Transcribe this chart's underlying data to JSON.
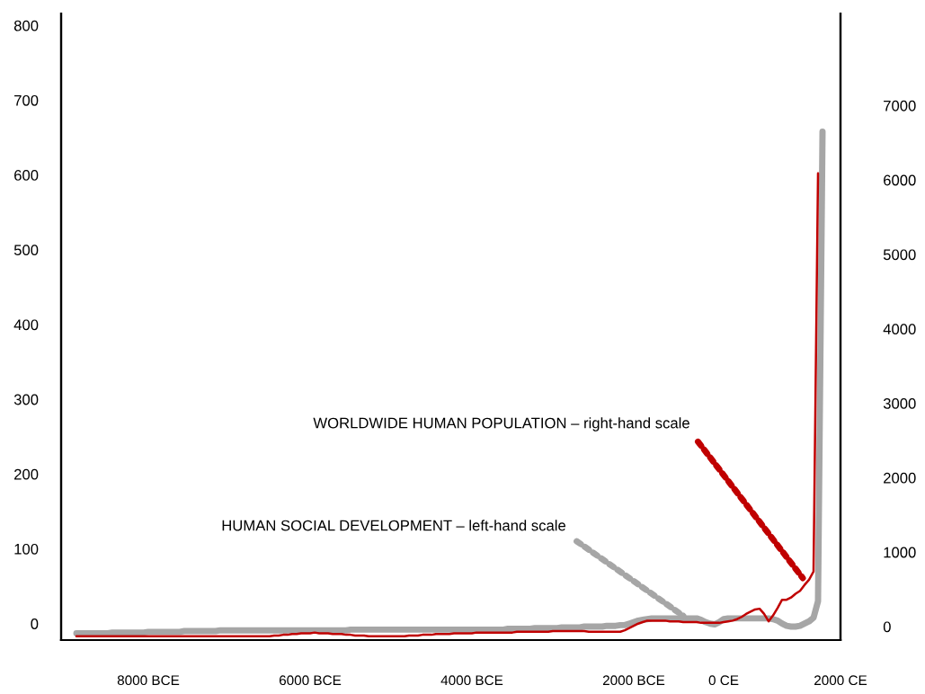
{
  "chart_data": {
    "type": "line",
    "categories": [
      null,
      null,
      null,
      null,
      null,
      null,
      null,
      null,
      null,
      null,
      null,
      null,
      null,
      null,
      null,
      null,
      "8000 BCE",
      null,
      null,
      null,
      null,
      null,
      null,
      null,
      null,
      null,
      null,
      null,
      null,
      null,
      null,
      null,
      null,
      null,
      null,
      null,
      null,
      null,
      null,
      null,
      null,
      null,
      null,
      null,
      null,
      null,
      null,
      null,
      null,
      null,
      null,
      null,
      "6000 BCE",
      null,
      null,
      null,
      null,
      null,
      null,
      null,
      null,
      null,
      null,
      null,
      null,
      null,
      null,
      null,
      null,
      null,
      null,
      null,
      null,
      null,
      null,
      null,
      null,
      null,
      null,
      null,
      null,
      null,
      null,
      null,
      null,
      null,
      null,
      null,
      "4000 BCE",
      null,
      null,
      null,
      null,
      null,
      null,
      null,
      null,
      null,
      null,
      null,
      null,
      null,
      null,
      null,
      null,
      null,
      null,
      null,
      null,
      null,
      null,
      null,
      null,
      null,
      null,
      null,
      null,
      null,
      null,
      null,
      null,
      null,
      null,
      null,
      "2000 BCE",
      null,
      null,
      null,
      null,
      null,
      null,
      null,
      null,
      null,
      null,
      null,
      null,
      null,
      null,
      null,
      null,
      null,
      null,
      null,
      "0 CE",
      null,
      null,
      null,
      null,
      null,
      null,
      null,
      null,
      null,
      null,
      null,
      null,
      null,
      null,
      null,
      null,
      null,
      null,
      null,
      null,
      null,
      null,
      null,
      null,
      null,
      "2000 CE"
    ],
    "ylim": [
      -22,
      816
    ],
    "yticks": [
      0,
      100,
      200,
      300,
      400,
      500,
      600,
      700,
      800
    ],
    "y2lim": [
      -181,
      8237
    ],
    "y2ticks": [
      0,
      1000,
      2000,
      3000,
      4000,
      5000,
      6000,
      7000
    ],
    "series": [
      {
        "color": "#a6a6a6",
        "values": [
          -13,
          -13,
          -13,
          -13,
          -13,
          -13,
          -13,
          -13,
          -12,
          -12,
          -12,
          -12,
          -12,
          -12,
          -12,
          -12,
          -11,
          -11,
          -11,
          -11,
          -11,
          -11,
          -11,
          -11,
          -10,
          -10,
          -10,
          -10,
          -10,
          -10,
          -10,
          -10,
          -9,
          -9,
          -9,
          -9,
          -9,
          -9,
          -9,
          -9,
          -9,
          -9,
          -9,
          -9,
          -9,
          -9,
          -9,
          -9,
          -9,
          -9,
          -9,
          -9,
          -9,
          -9,
          -9,
          -9,
          -9,
          -9,
          -9,
          -9,
          -9,
          -8,
          -8,
          -8,
          -8,
          -8,
          -8,
          -8,
          -8,
          -8,
          -8,
          -8,
          -8,
          -8,
          -8,
          -8,
          -8,
          -8,
          -8,
          -8,
          -8,
          -8,
          -8,
          -8,
          -8,
          -8,
          -8,
          -8,
          -8,
          -8,
          -8,
          -8,
          -8,
          -8,
          -8,
          -8,
          -7,
          -7,
          -7,
          -7,
          -7,
          -7,
          -6,
          -6,
          -6,
          -6,
          -6,
          -6,
          -5,
          -5,
          -5,
          -5,
          -5,
          -4,
          -4,
          -4,
          -4,
          -4,
          -3,
          -3,
          -3,
          -2,
          -2,
          0,
          2,
          4,
          5,
          6,
          7,
          7,
          7,
          7,
          7,
          7,
          7,
          7,
          7,
          7,
          7,
          5,
          2,
          0,
          -1,
          2,
          6,
          7,
          7,
          7,
          7,
          7,
          7,
          7,
          7,
          7,
          7,
          6,
          4,
          0,
          -3,
          -4,
          -4,
          -3,
          0,
          3,
          8,
          30,
          658,
          null,
          null,
          null,
          null
        ]
      },
      {
        "color": "#c00000",
        "axis": "y2",
        "values": [
          -130,
          -130,
          -130,
          -130,
          -130,
          -130,
          -130,
          -130,
          -130,
          -130,
          -130,
          -130,
          -130,
          -130,
          -130,
          -130,
          -130,
          -130,
          -130,
          -130,
          -130,
          -130,
          -130,
          -130,
          -130,
          -130,
          -130,
          -130,
          -130,
          -130,
          -130,
          -130,
          -130,
          -130,
          -130,
          -130,
          -130,
          -130,
          -130,
          -130,
          -130,
          -130,
          -130,
          -130,
          -120,
          -120,
          -110,
          -110,
          -100,
          -100,
          -90,
          -90,
          -90,
          -80,
          -90,
          -90,
          -90,
          -100,
          -100,
          -100,
          -110,
          -110,
          -120,
          -120,
          -120,
          -130,
          -130,
          -130,
          -130,
          -130,
          -130,
          -130,
          -130,
          -130,
          -120,
          -120,
          -120,
          -110,
          -110,
          -110,
          -100,
          -100,
          -100,
          -100,
          -90,
          -90,
          -90,
          -90,
          -90,
          -80,
          -80,
          -80,
          -80,
          -80,
          -80,
          -80,
          -80,
          -80,
          -70,
          -70,
          -70,
          -70,
          -70,
          -70,
          -70,
          -70,
          -60,
          -60,
          -60,
          -60,
          -60,
          -60,
          -60,
          -60,
          -70,
          -70,
          -70,
          -70,
          -70,
          -70,
          -70,
          -70,
          -50,
          -20,
          10,
          40,
          60,
          80,
          80,
          80,
          80,
          80,
          70,
          70,
          70,
          60,
          60,
          60,
          60,
          50,
          50,
          50,
          50,
          50,
          60,
          70,
          80,
          100,
          130,
          170,
          200,
          230,
          240,
          170,
          70,
          150,
          250,
          360,
          360,
          390,
          440,
          480,
          560,
          630,
          740,
          6090,
          null,
          null,
          null,
          null,
          null
        ]
      }
    ],
    "annotations": [
      "WORLDWIDE HUMAN POPULATION – right-hand scale",
      "HUMAN SOCIAL DEVELOPMENT – left-hand scale"
    ]
  }
}
